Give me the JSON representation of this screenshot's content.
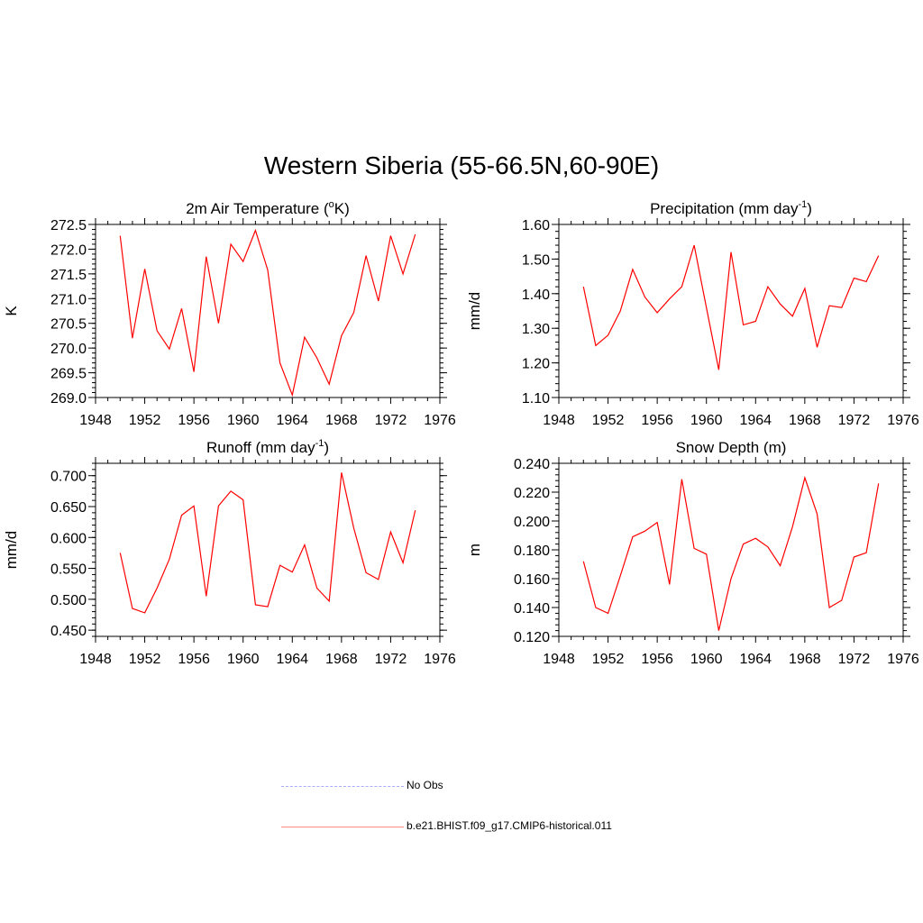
{
  "figure": {
    "title": "Western Siberia (55-66.5N,60-90E)"
  },
  "legend": {
    "items": [
      {
        "label": "No Obs",
        "color": "#aaaaff",
        "style": "dashed"
      },
      {
        "label": "b.e21.BHIST.f09_g17.CMIP6-historical.011",
        "color": "#ff8888",
        "style": "solid"
      }
    ]
  },
  "chart_data": [
    {
      "type": "line",
      "title": "2m Air Temperature (",
      "title_sup": "o",
      "title_tail": "K)",
      "ylabel": "K",
      "xlim": [
        1948,
        1976
      ],
      "ylim": [
        269.0,
        272.5
      ],
      "x_ticks": [
        1948,
        1952,
        1956,
        1960,
        1964,
        1968,
        1972,
        1976
      ],
      "y_ticks": [
        "269.0",
        "269.5",
        "270.0",
        "270.5",
        "271.0",
        "271.5",
        "272.0",
        "272.5"
      ],
      "series": [
        {
          "color": "#ff0000",
          "x": [
            1950,
            1951,
            1952,
            1953,
            1954,
            1955,
            1956,
            1957,
            1958,
            1959,
            1960,
            1961,
            1962,
            1963,
            1964,
            1965,
            1966,
            1967,
            1968,
            1969,
            1970,
            1971,
            1972,
            1973,
            1974
          ],
          "values": [
            272.27,
            270.2,
            271.6,
            270.35,
            269.98,
            270.8,
            269.52,
            271.85,
            270.5,
            272.1,
            271.75,
            272.38,
            271.58,
            269.7,
            269.05,
            270.22,
            269.8,
            269.27,
            270.25,
            270.72,
            271.87,
            270.95,
            272.27,
            271.5,
            272.3
          ]
        }
      ]
    },
    {
      "type": "line",
      "title": "Precipitation (mm day",
      "title_sup": "-1",
      "title_tail": ")",
      "ylabel": "mm/d",
      "xlim": [
        1948,
        1976
      ],
      "ylim": [
        1.1,
        1.6
      ],
      "x_ticks": [
        1948,
        1952,
        1956,
        1960,
        1964,
        1968,
        1972,
        1976
      ],
      "y_ticks": [
        "1.10",
        "1.20",
        "1.30",
        "1.40",
        "1.50",
        "1.60"
      ],
      "series": [
        {
          "color": "#ff0000",
          "x": [
            1950,
            1951,
            1952,
            1953,
            1954,
            1955,
            1956,
            1957,
            1958,
            1959,
            1960,
            1961,
            1962,
            1963,
            1964,
            1965,
            1966,
            1967,
            1968,
            1969,
            1970,
            1971,
            1972,
            1973,
            1974
          ],
          "values": [
            1.42,
            1.25,
            1.28,
            1.35,
            1.47,
            1.39,
            1.345,
            1.385,
            1.42,
            1.54,
            1.36,
            1.18,
            1.52,
            1.31,
            1.32,
            1.42,
            1.37,
            1.335,
            1.415,
            1.245,
            1.365,
            1.36,
            1.445,
            1.435,
            1.51
          ]
        }
      ]
    },
    {
      "type": "line",
      "title": "Runoff (mm day",
      "title_sup": "-1",
      "title_tail": ")",
      "ylabel": "mm/d",
      "xlim": [
        1948,
        1976
      ],
      "ylim": [
        0.44,
        0.72
      ],
      "x_ticks": [
        1948,
        1952,
        1956,
        1960,
        1964,
        1968,
        1972,
        1976
      ],
      "y_ticks": [
        "0.450",
        "0.500",
        "0.550",
        "0.600",
        "0.650",
        "0.700"
      ],
      "y_tick_values": [
        0.45,
        0.5,
        0.55,
        0.6,
        0.65,
        0.7
      ],
      "series": [
        {
          "color": "#ff0000",
          "x": [
            1950,
            1951,
            1952,
            1953,
            1954,
            1955,
            1956,
            1957,
            1958,
            1959,
            1960,
            1961,
            1962,
            1963,
            1964,
            1965,
            1966,
            1967,
            1968,
            1969,
            1970,
            1971,
            1972,
            1973,
            1974
          ],
          "values": [
            0.575,
            0.485,
            0.478,
            0.518,
            0.565,
            0.636,
            0.651,
            0.505,
            0.651,
            0.675,
            0.661,
            0.491,
            0.488,
            0.555,
            0.544,
            0.588,
            0.518,
            0.497,
            0.705,
            0.615,
            0.543,
            0.532,
            0.609,
            0.559,
            0.644
          ]
        }
      ]
    },
    {
      "type": "line",
      "title": "Snow Depth (m)",
      "title_sup": "",
      "title_tail": "",
      "ylabel": "m",
      "xlim": [
        1948,
        1976
      ],
      "ylim": [
        0.12,
        0.24
      ],
      "x_ticks": [
        1948,
        1952,
        1956,
        1960,
        1964,
        1968,
        1972,
        1976
      ],
      "y_ticks": [
        "0.120",
        "0.140",
        "0.160",
        "0.180",
        "0.200",
        "0.220",
        "0.240"
      ],
      "series": [
        {
          "color": "#ff0000",
          "x": [
            1950,
            1951,
            1952,
            1953,
            1954,
            1955,
            1956,
            1957,
            1958,
            1959,
            1960,
            1961,
            1962,
            1963,
            1964,
            1965,
            1966,
            1967,
            1968,
            1969,
            1970,
            1971,
            1972,
            1973,
            1974
          ],
          "values": [
            0.172,
            0.14,
            0.136,
            0.162,
            0.189,
            0.193,
            0.199,
            0.156,
            0.229,
            0.181,
            0.177,
            0.124,
            0.16,
            0.184,
            0.188,
            0.182,
            0.169,
            0.196,
            0.23,
            0.205,
            0.14,
            0.145,
            0.175,
            0.178,
            0.226
          ]
        }
      ]
    }
  ]
}
